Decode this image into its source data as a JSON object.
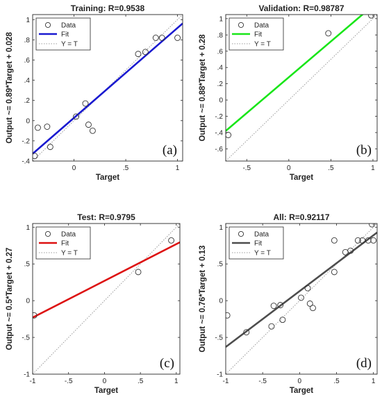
{
  "chart_data": [
    {
      "type": "scatter",
      "title": "Training: R=0.9538",
      "xlabel": "Target",
      "ylabel": "Output ~= 0.89*Target + 0.028",
      "panel": "(a)",
      "xlim": [
        -0.4,
        1.05
      ],
      "ylim": [
        -0.4,
        1.05
      ],
      "xticks": [
        0,
        0.5,
        1
      ],
      "yticks": [
        -0.4,
        -0.2,
        0,
        0.2,
        0.4,
        0.6,
        0.8,
        1
      ],
      "fit": {
        "slope": 0.89,
        "intercept": 0.028,
        "color": "#1a1ad0"
      },
      "points": [
        {
          "x": -0.38,
          "y": -0.35
        },
        {
          "x": -0.35,
          "y": -0.07
        },
        {
          "x": -0.26,
          "y": -0.06
        },
        {
          "x": -0.23,
          "y": -0.26
        },
        {
          "x": 0.02,
          "y": 0.04
        },
        {
          "x": 0.11,
          "y": 0.17
        },
        {
          "x": 0.14,
          "y": -0.04
        },
        {
          "x": 0.18,
          "y": -0.1
        },
        {
          "x": 0.62,
          "y": 0.66
        },
        {
          "x": 0.69,
          "y": 0.68
        },
        {
          "x": 0.79,
          "y": 0.82
        },
        {
          "x": 0.85,
          "y": 0.82
        },
        {
          "x": 1.0,
          "y": 0.82
        }
      ],
      "legend": {
        "items": [
          "Data",
          "Fit",
          "Y = T"
        ],
        "position": "top-left"
      }
    },
    {
      "type": "scatter",
      "title": "Validation: R=0.98787",
      "xlabel": "Target",
      "ylabel": "Output ~= 0.88*Target + 0.28",
      "panel": "(b)",
      "xlim": [
        -0.75,
        1.05
      ],
      "ylim": [
        -0.75,
        1.05
      ],
      "xticks": [
        -0.5,
        0,
        0.5,
        1
      ],
      "yticks": [
        -0.6,
        -0.4,
        -0.2,
        0,
        0.2,
        0.4,
        0.6,
        0.8,
        1
      ],
      "fit": {
        "slope": 0.88,
        "intercept": 0.28,
        "color": "#19e619"
      },
      "points": [
        {
          "x": -0.72,
          "y": -0.43
        },
        {
          "x": 0.47,
          "y": 0.82
        },
        {
          "x": 0.98,
          "y": 1.04
        }
      ],
      "legend": {
        "items": [
          "Data",
          "Fit",
          "Y = T"
        ],
        "position": "top-left"
      }
    },
    {
      "type": "scatter",
      "title": "Test: R=0.9795",
      "xlabel": "Target",
      "ylabel": "Output ~= 0.5*Target + 0.27",
      "panel": "(c)",
      "xlim": [
        -1,
        1.05
      ],
      "ylim": [
        -1,
        1.05
      ],
      "xticks": [
        -1,
        -0.5,
        0,
        0.5,
        1
      ],
      "yticks": [
        -1,
        -0.5,
        0,
        0.5,
        1
      ],
      "fit": {
        "slope": 0.5,
        "intercept": 0.27,
        "color": "#dd1111"
      },
      "points": [
        {
          "x": -0.98,
          "y": -0.2
        },
        {
          "x": 0.47,
          "y": 0.39
        },
        {
          "x": 0.93,
          "y": 0.82
        }
      ],
      "legend": {
        "items": [
          "Data",
          "Fit",
          "Y = T"
        ],
        "position": "top-left"
      }
    },
    {
      "type": "scatter",
      "title": "All: R=0.92117",
      "xlabel": "Target",
      "ylabel": "Output ~= 0.76*Target + 0.13",
      "panel": "(d)",
      "xlim": [
        -1,
        1.05
      ],
      "ylim": [
        -1,
        1.05
      ],
      "xticks": [
        -1,
        -0.5,
        0,
        0.5,
        1
      ],
      "yticks": [
        -1,
        -0.5,
        0,
        0.5,
        1
      ],
      "fit": {
        "slope": 0.76,
        "intercept": 0.13,
        "color": "#4d4d4d"
      },
      "points": [
        {
          "x": -0.98,
          "y": -0.2
        },
        {
          "x": -0.72,
          "y": -0.43
        },
        {
          "x": -0.38,
          "y": -0.35
        },
        {
          "x": -0.35,
          "y": -0.07
        },
        {
          "x": -0.26,
          "y": -0.06
        },
        {
          "x": -0.23,
          "y": -0.26
        },
        {
          "x": 0.02,
          "y": 0.04
        },
        {
          "x": 0.11,
          "y": 0.17
        },
        {
          "x": 0.14,
          "y": -0.04
        },
        {
          "x": 0.18,
          "y": -0.1
        },
        {
          "x": 0.47,
          "y": 0.82
        },
        {
          "x": 0.47,
          "y": 0.39
        },
        {
          "x": 0.62,
          "y": 0.66
        },
        {
          "x": 0.69,
          "y": 0.68
        },
        {
          "x": 0.79,
          "y": 0.82
        },
        {
          "x": 0.85,
          "y": 0.82
        },
        {
          "x": 0.93,
          "y": 0.82
        },
        {
          "x": 1.0,
          "y": 0.82
        },
        {
          "x": 0.98,
          "y": 1.04
        }
      ],
      "legend": {
        "items": [
          "Data",
          "Fit",
          "Y = T"
        ],
        "position": "top-left"
      }
    }
  ]
}
